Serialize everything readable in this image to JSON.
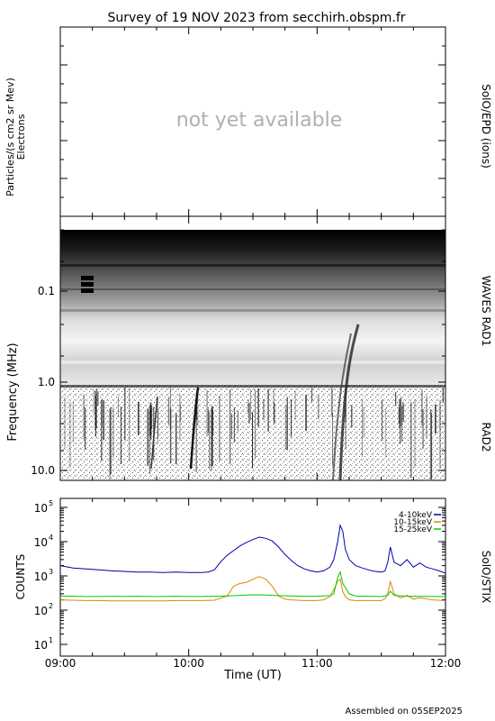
{
  "title": "Survey of 19 NOV 2023 from secchirh.obspm.fr",
  "footer": "Assembled on 05SEP2025",
  "panels": {
    "epd": {
      "ylabel_line1": "Particles/(s cm2 sr Mev)",
      "ylabel_line2": "Electrons",
      "placeholder": "not yet available",
      "side_label": "SolO/EPD (ions)"
    },
    "waves": {
      "ylabel": "Frequency (MHz)",
      "side_label_top": "WAVES RAD1",
      "side_label_bottom": "RAD2",
      "yticks": [
        "0.1",
        "1.0",
        "10.0"
      ]
    },
    "stix": {
      "ylabel": "COUNTS",
      "side_label": "SolO/STIX",
      "yticks": [
        {
          "base": "10",
          "exp": "1"
        },
        {
          "base": "10",
          "exp": "2"
        },
        {
          "base": "10",
          "exp": "3"
        },
        {
          "base": "10",
          "exp": "4"
        },
        {
          "base": "10",
          "exp": "5"
        }
      ]
    }
  },
  "chart_data": {
    "type": "line",
    "title": "Survey of 19 NOV 2023 from secchirh.obspm.fr",
    "xlabel": "Time (UT)",
    "ylabel": "COUNTS",
    "x_ticks": [
      "09:00",
      "10:00",
      "11:00",
      "12:00"
    ],
    "x_range_hours": [
      9,
      12
    ],
    "y_scale": "log",
    "ylim": [
      10,
      100000
    ],
    "legend_placement": "top-right",
    "series": [
      {
        "name": "4-10keV",
        "color": "#0000aa",
        "x": [
          9.0,
          9.1,
          9.2,
          9.3,
          9.4,
          9.5,
          9.6,
          9.7,
          9.8,
          9.9,
          10.0,
          10.1,
          10.15,
          10.2,
          10.25,
          10.3,
          10.35,
          10.4,
          10.45,
          10.5,
          10.55,
          10.6,
          10.65,
          10.7,
          10.75,
          10.8,
          10.85,
          10.9,
          10.95,
          11.0,
          11.05,
          11.1,
          11.13,
          11.16,
          11.18,
          11.2,
          11.22,
          11.25,
          11.3,
          11.35,
          11.4,
          11.45,
          11.5,
          11.53,
          11.55,
          11.57,
          11.6,
          11.65,
          11.7,
          11.75,
          11.8,
          11.85,
          11.9,
          11.95,
          12.0
        ],
        "y": [
          2000,
          1700,
          1600,
          1500,
          1400,
          1350,
          1300,
          1300,
          1250,
          1300,
          1250,
          1250,
          1300,
          1500,
          2600,
          4000,
          5500,
          7500,
          9500,
          11500,
          13500,
          12500,
          10500,
          7000,
          4200,
          2800,
          2000,
          1600,
          1400,
          1300,
          1400,
          1800,
          3000,
          10000,
          30000,
          20000,
          6000,
          3000,
          2000,
          1700,
          1500,
          1350,
          1300,
          1400,
          2500,
          7000,
          2500,
          2000,
          3000,
          1800,
          2400,
          1800,
          1600,
          1400,
          1200
        ]
      },
      {
        "name": "10-15keV",
        "color": "#dd8800",
        "x": [
          9.0,
          9.1,
          9.2,
          9.3,
          9.4,
          9.5,
          9.6,
          9.7,
          9.8,
          9.9,
          10.0,
          10.1,
          10.2,
          10.3,
          10.35,
          10.4,
          10.45,
          10.5,
          10.55,
          10.6,
          10.65,
          10.7,
          10.75,
          10.8,
          10.9,
          11.0,
          11.05,
          11.1,
          11.13,
          11.16,
          11.18,
          11.2,
          11.22,
          11.25,
          11.3,
          11.4,
          11.5,
          11.53,
          11.55,
          11.57,
          11.6,
          11.65,
          11.7,
          11.75,
          11.8,
          11.9,
          12.0
        ],
        "y": [
          200,
          195,
          190,
          190,
          185,
          185,
          185,
          185,
          185,
          190,
          190,
          190,
          195,
          260,
          500,
          600,
          650,
          800,
          950,
          800,
          500,
          260,
          210,
          200,
          190,
          190,
          200,
          250,
          400,
          700,
          800,
          350,
          250,
          200,
          190,
          190,
          190,
          220,
          300,
          700,
          300,
          230,
          270,
          210,
          230,
          200,
          190
        ]
      },
      {
        "name": "15-25keV",
        "color": "#00cc00",
        "x": [
          9.0,
          9.1,
          9.2,
          9.3,
          9.4,
          9.5,
          9.6,
          9.7,
          9.8,
          9.9,
          10.0,
          10.1,
          10.2,
          10.3,
          10.4,
          10.5,
          10.6,
          10.7,
          10.8,
          10.9,
          11.0,
          11.1,
          11.13,
          11.16,
          11.18,
          11.2,
          11.25,
          11.3,
          11.4,
          11.5,
          11.55,
          11.57,
          11.6,
          11.7,
          11.8,
          11.9,
          12.0
        ],
        "y": [
          260,
          255,
          250,
          250,
          255,
          250,
          255,
          250,
          250,
          255,
          250,
          250,
          255,
          260,
          270,
          280,
          275,
          265,
          260,
          255,
          255,
          265,
          300,
          900,
          1300,
          600,
          300,
          260,
          255,
          250,
          270,
          360,
          270,
          255,
          255,
          250,
          250
        ]
      }
    ]
  }
}
